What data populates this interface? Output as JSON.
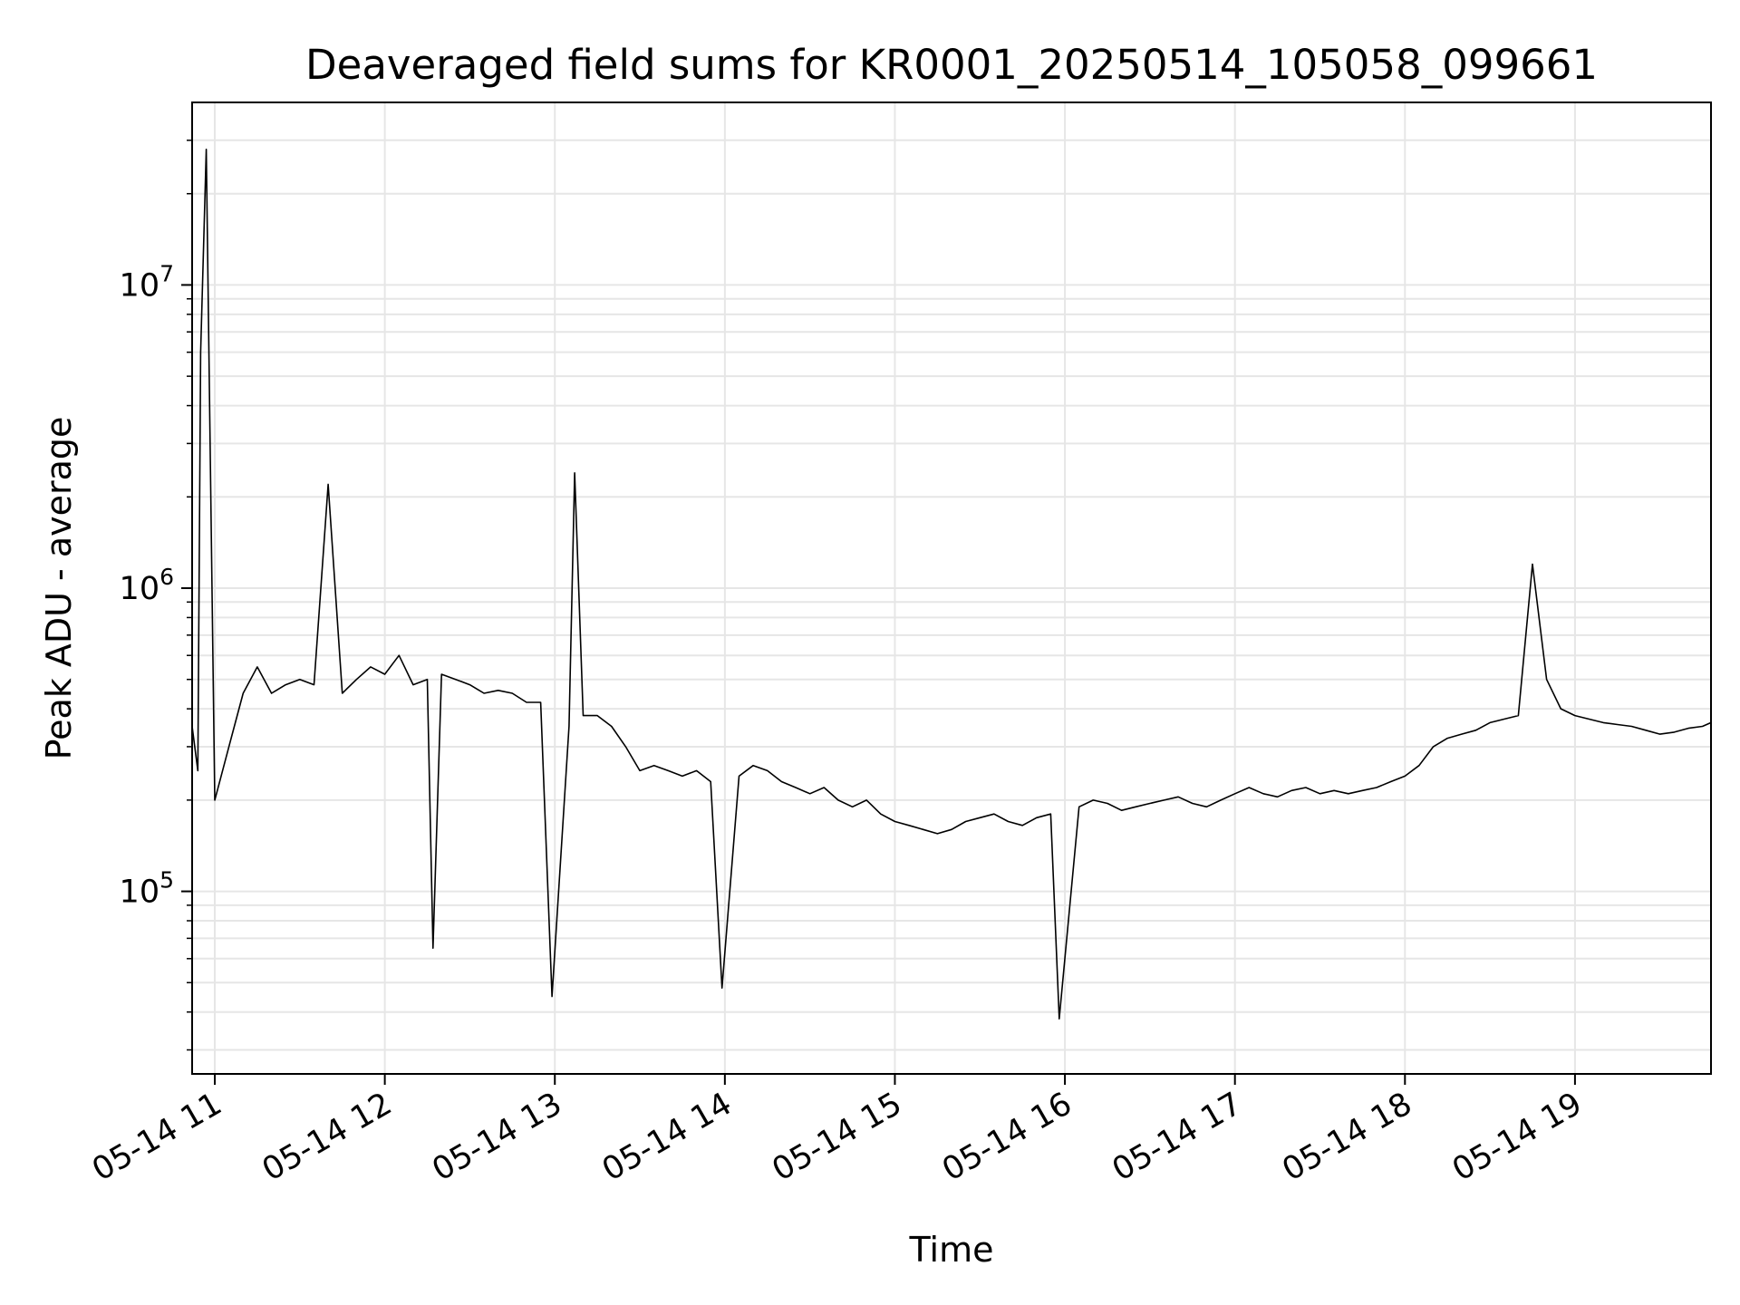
{
  "chart_data": {
    "type": "line",
    "title": "Deaveraged field sums for KR0001_20250514_105058_099661",
    "xlabel": "Time",
    "ylabel": "Peak ADU - average",
    "yscale": "log",
    "grid": true,
    "grid_color": "#e6e6e6",
    "line_color": "#000000",
    "x_ticks": [
      "05-14 11",
      "05-14 12",
      "05-14 13",
      "05-14 14",
      "05-14 15",
      "05-14 16",
      "05-14 17",
      "05-14 18",
      "05-14 19"
    ],
    "y_ticks": [
      {
        "base": "10",
        "exp": "5",
        "value": 100000
      },
      {
        "base": "10",
        "exp": "6",
        "value": 1000000
      },
      {
        "base": "10",
        "exp": "7",
        "value": 10000000
      }
    ],
    "xlim": [
      "2025-05-14 10:52",
      "2025-05-14 19:48"
    ],
    "ylim": [
      25000,
      40000000
    ],
    "series": [
      {
        "x": [
          "2025-05-14 10:52",
          "2025-05-14 10:54",
          "2025-05-14 10:55",
          "2025-05-14 10:57",
          "2025-05-14 11:00",
          "2025-05-14 11:05",
          "2025-05-14 11:10",
          "2025-05-14 11:15",
          "2025-05-14 11:20",
          "2025-05-14 11:25",
          "2025-05-14 11:30",
          "2025-05-14 11:35",
          "2025-05-14 11:40",
          "2025-05-14 11:45",
          "2025-05-14 11:50",
          "2025-05-14 11:55",
          "2025-05-14 12:00",
          "2025-05-14 12:05",
          "2025-05-14 12:10",
          "2025-05-14 12:15",
          "2025-05-14 12:17",
          "2025-05-14 12:20",
          "2025-05-14 12:25",
          "2025-05-14 12:30",
          "2025-05-14 12:35",
          "2025-05-14 12:40",
          "2025-05-14 12:45",
          "2025-05-14 12:50",
          "2025-05-14 12:55",
          "2025-05-14 12:59",
          "2025-05-14 13:05",
          "2025-05-14 13:07",
          "2025-05-14 13:10",
          "2025-05-14 13:15",
          "2025-05-14 13:20",
          "2025-05-14 13:25",
          "2025-05-14 13:30",
          "2025-05-14 13:35",
          "2025-05-14 13:40",
          "2025-05-14 13:45",
          "2025-05-14 13:50",
          "2025-05-14 13:55",
          "2025-05-14 13:59",
          "2025-05-14 14:05",
          "2025-05-14 14:10",
          "2025-05-14 14:15",
          "2025-05-14 14:20",
          "2025-05-14 14:25",
          "2025-05-14 14:30",
          "2025-05-14 14:35",
          "2025-05-14 14:40",
          "2025-05-14 14:45",
          "2025-05-14 14:50",
          "2025-05-14 14:55",
          "2025-05-14 15:00",
          "2025-05-14 15:05",
          "2025-05-14 15:10",
          "2025-05-14 15:15",
          "2025-05-14 15:20",
          "2025-05-14 15:25",
          "2025-05-14 15:30",
          "2025-05-14 15:35",
          "2025-05-14 15:40",
          "2025-05-14 15:45",
          "2025-05-14 15:50",
          "2025-05-14 15:55",
          "2025-05-14 15:58",
          "2025-05-14 16:05",
          "2025-05-14 16:10",
          "2025-05-14 16:15",
          "2025-05-14 16:20",
          "2025-05-14 16:25",
          "2025-05-14 16:30",
          "2025-05-14 16:35",
          "2025-05-14 16:40",
          "2025-05-14 16:45",
          "2025-05-14 16:50",
          "2025-05-14 16:55",
          "2025-05-14 17:00",
          "2025-05-14 17:05",
          "2025-05-14 17:10",
          "2025-05-14 17:15",
          "2025-05-14 17:20",
          "2025-05-14 17:25",
          "2025-05-14 17:30",
          "2025-05-14 17:35",
          "2025-05-14 17:40",
          "2025-05-14 17:45",
          "2025-05-14 17:50",
          "2025-05-14 17:55",
          "2025-05-14 18:00",
          "2025-05-14 18:05",
          "2025-05-14 18:10",
          "2025-05-14 18:15",
          "2025-05-14 18:20",
          "2025-05-14 18:25",
          "2025-05-14 18:30",
          "2025-05-14 18:35",
          "2025-05-14 18:40",
          "2025-05-14 18:45",
          "2025-05-14 18:50",
          "2025-05-14 18:55",
          "2025-05-14 19:00",
          "2025-05-14 19:05",
          "2025-05-14 19:10",
          "2025-05-14 19:15",
          "2025-05-14 19:20",
          "2025-05-14 19:25",
          "2025-05-14 19:30",
          "2025-05-14 19:35",
          "2025-05-14 19:40",
          "2025-05-14 19:45",
          "2025-05-14 19:48"
        ],
        "y": [
          350000,
          250000,
          6000000,
          28000000,
          200000,
          300000,
          450000,
          550000,
          450000,
          480000,
          500000,
          480000,
          2200000,
          450000,
          500000,
          550000,
          520000,
          600000,
          480000,
          500000,
          65000,
          520000,
          500000,
          480000,
          450000,
          460000,
          450000,
          420000,
          420000,
          45000,
          350000,
          2400000,
          380000,
          380000,
          350000,
          300000,
          250000,
          260000,
          250000,
          240000,
          250000,
          230000,
          48000,
          240000,
          260000,
          250000,
          230000,
          220000,
          210000,
          220000,
          200000,
          190000,
          200000,
          180000,
          170000,
          165000,
          160000,
          155000,
          160000,
          170000,
          175000,
          180000,
          170000,
          165000,
          175000,
          180000,
          38000,
          190000,
          200000,
          195000,
          185000,
          190000,
          195000,
          200000,
          205000,
          195000,
          190000,
          200000,
          210000,
          220000,
          210000,
          205000,
          215000,
          220000,
          210000,
          215000,
          210000,
          215000,
          220000,
          230000,
          240000,
          260000,
          300000,
          320000,
          330000,
          340000,
          360000,
          370000,
          380000,
          1200000,
          500000,
          400000,
          380000,
          370000,
          360000,
          355000,
          350000,
          340000,
          330000,
          335000,
          345000,
          350000,
          360000
        ]
      }
    ]
  }
}
